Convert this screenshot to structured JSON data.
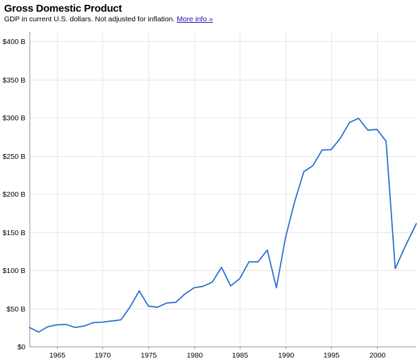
{
  "header": {
    "title": "Gross Domestic Product",
    "subtitle": "GDP in current U.S. dollars. Not adjusted for inflation.",
    "more_info_link": "More info »"
  },
  "colors": {
    "line": "#2a6fce",
    "grid": "#e6e6e6",
    "axis": "#999999"
  },
  "chart_data": {
    "type": "line",
    "title": "Gross Domestic Product",
    "xlabel": "",
    "ylabel": "",
    "xlim": [
      1962,
      2004.3
    ],
    "ylim": [
      0,
      400
    ],
    "y_unit_suffix": " B",
    "y_ticks": [
      0,
      50,
      100,
      150,
      200,
      250,
      300,
      350,
      400
    ],
    "y_tick_labels": [
      "$0",
      "$50 B",
      "$100 B",
      "$150 B",
      "$200 B",
      "$250 B",
      "$300 B",
      "$350 B",
      "$400 B"
    ],
    "x_ticks": [
      1965,
      1970,
      1975,
      1980,
      1985,
      1990,
      1995,
      2000
    ],
    "x_tick_labels": [
      "1965",
      "1970",
      "1975",
      "1980",
      "1985",
      "1990",
      "1995",
      "2000"
    ],
    "grid": true,
    "series": [
      {
        "name": "GDP",
        "x": [
          1962,
          1963,
          1964,
          1965,
          1966,
          1967,
          1968,
          1969,
          1970,
          1971,
          1972,
          1973,
          1974,
          1975,
          1976,
          1977,
          1978,
          1979,
          1980,
          1981,
          1982,
          1983,
          1984,
          1985,
          1986,
          1987,
          1988,
          1989,
          1990,
          1991,
          1992,
          1993,
          1994,
          1995,
          1996,
          1997,
          1998,
          1999,
          2000,
          2001,
          2002,
          2003,
          2004.3
        ],
        "values": [
          25,
          19,
          26,
          28.5,
          29,
          25,
          27,
          31.5,
          32,
          33.5,
          35,
          52,
          73,
          53,
          51.5,
          57,
          58,
          69,
          77,
          79,
          84.5,
          104,
          79.5,
          89,
          111,
          111,
          126.5,
          77,
          143,
          190,
          229,
          237,
          257.5,
          258,
          273,
          293.5,
          299,
          283.5,
          284.5,
          269,
          102,
          129,
          161
        ]
      }
    ]
  }
}
